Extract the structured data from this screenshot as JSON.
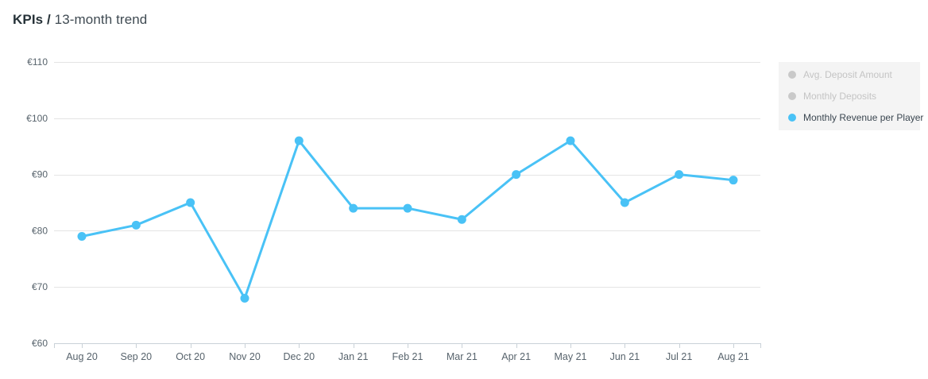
{
  "header": {
    "title_bold": "KPIs /",
    "title_rest": "13-month trend"
  },
  "legend": {
    "position": "top-right",
    "items": [
      {
        "label": "Avg. Deposit Amount",
        "state": "inactive",
        "color": "#c9c9c9"
      },
      {
        "label": "Monthly Deposits",
        "state": "inactive",
        "color": "#c9c9c9"
      },
      {
        "label": "Monthly Revenue per Player",
        "state": "active",
        "color": "#49c2f6"
      }
    ]
  },
  "chart_data": {
    "type": "line",
    "title": "KPIs / 13-month trend",
    "categories": [
      "Aug 20",
      "Sep 20",
      "Oct 20",
      "Nov 20",
      "Dec 20",
      "Jan 21",
      "Feb 21",
      "Mar 21",
      "Apr 21",
      "May 21",
      "Jun 21",
      "Jul 21",
      "Aug 21"
    ],
    "series": [
      {
        "name": "Monthly Revenue per Player",
        "values": [
          79,
          81,
          85,
          68,
          96,
          84,
          84,
          82,
          90,
          96,
          85,
          90,
          89
        ],
        "color": "#49c2f6"
      }
    ],
    "hidden_series": [
      "Avg. Deposit Amount",
      "Monthly Deposits"
    ],
    "xlabel": "",
    "ylabel": "",
    "currency": "€",
    "ylim": [
      60,
      110
    ],
    "yticks": [
      60,
      70,
      80,
      90,
      100,
      110
    ],
    "ytick_labels": [
      "€60",
      "€70",
      "€80",
      "€90",
      "€100",
      "€110"
    ],
    "grid": "horizontal",
    "legend_position": "top-right"
  },
  "colors": {
    "accent": "#49c2f6",
    "grid": "#e4e4e4",
    "axis": "#c9d1d7",
    "axis_text": "#57636c",
    "legend_bg": "#f4f4f4",
    "legend_inactive_text": "#c4c4c4",
    "legend_active_text": "#3a4650",
    "title_text": "#263238"
  }
}
